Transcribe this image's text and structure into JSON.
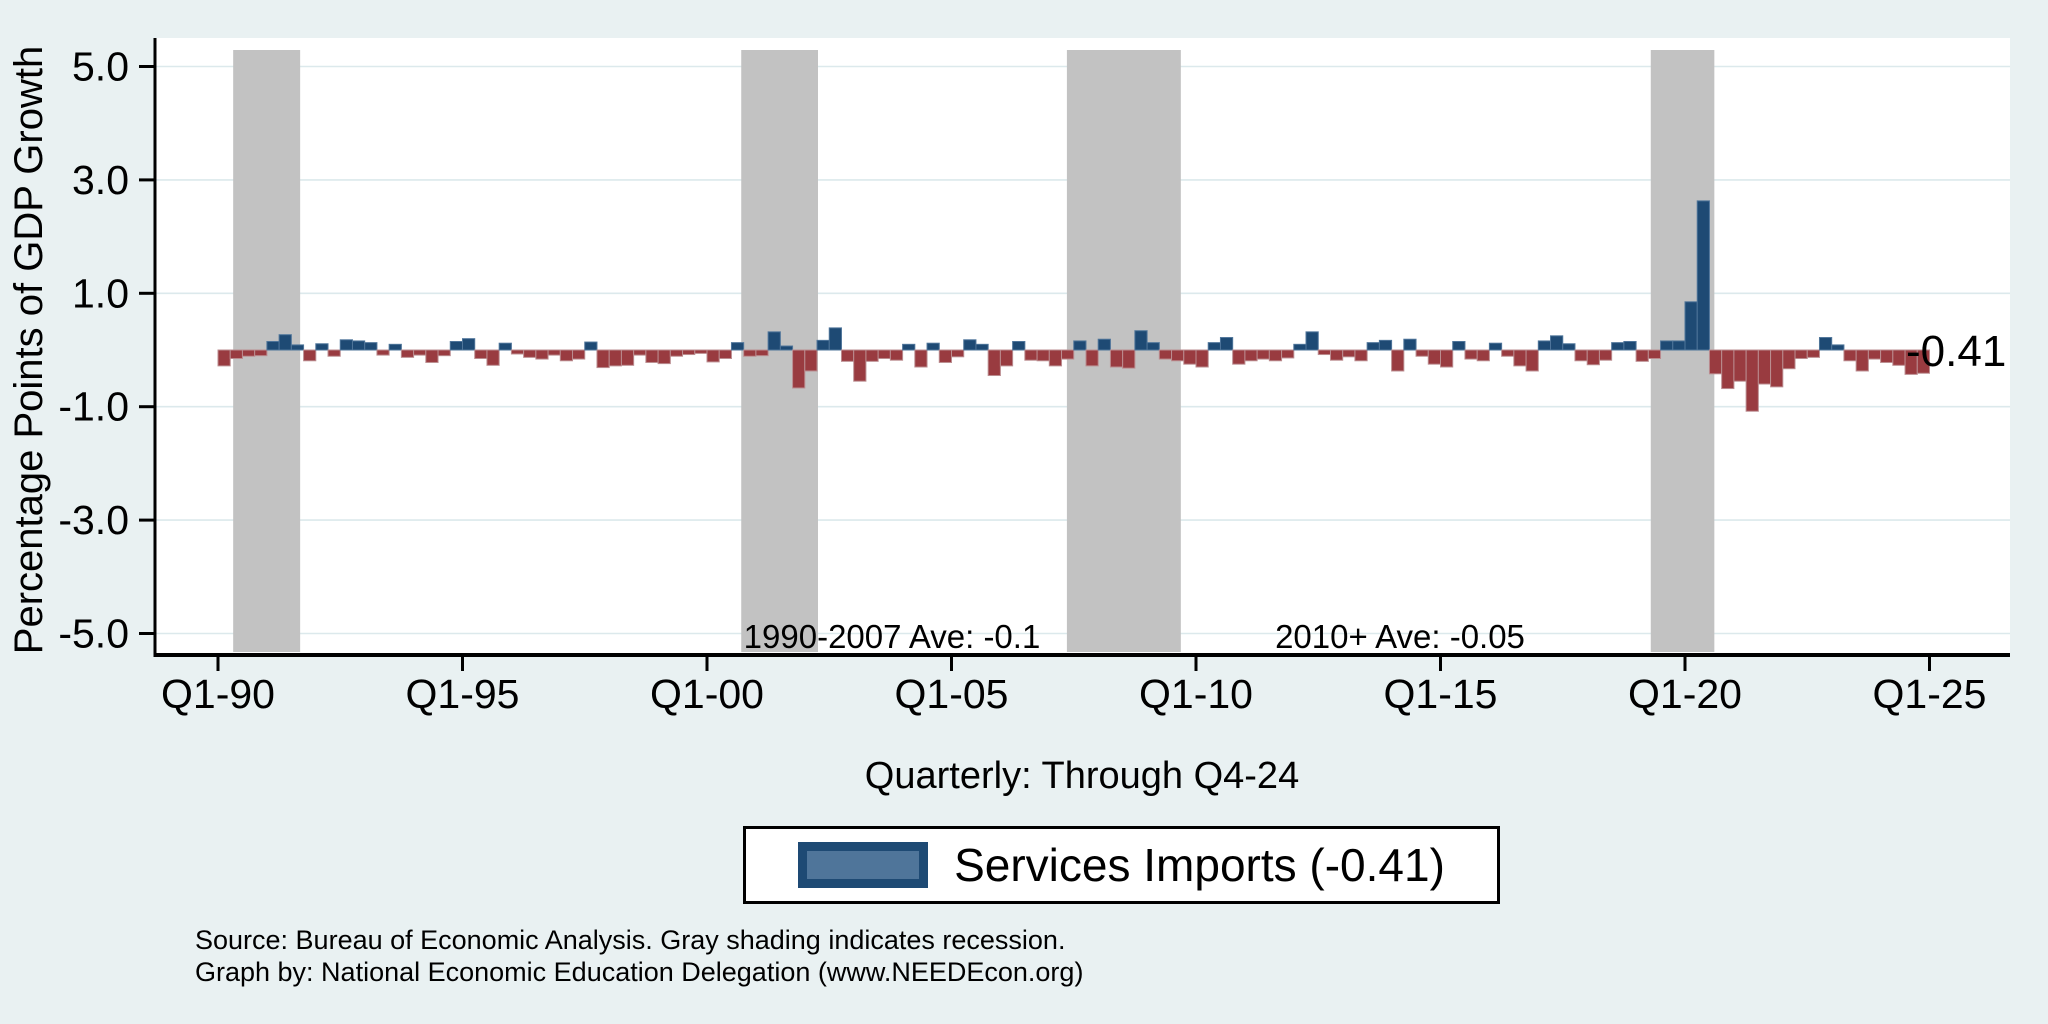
{
  "chart_data": {
    "type": "bar",
    "title": "",
    "ylabel": "Percentage Points of GDP Growth",
    "xlabel": "Quarterly: Through Q4-24",
    "ylim": [
      -5.4,
      5.5
    ],
    "xlim": [
      1988.7,
      2026.6
    ],
    "grid": true,
    "y_ticks": [
      {
        "label": "5.0",
        "value": 5
      },
      {
        "label": "3.0",
        "value": 3
      },
      {
        "label": "1.0",
        "value": 1
      },
      {
        "label": "-1.0",
        "value": -1
      },
      {
        "label": "-3.0",
        "value": -3
      },
      {
        "label": "-5.0",
        "value": -5
      }
    ],
    "x_ticks": [
      {
        "label": "Q1-90",
        "year": 1990
      },
      {
        "label": "Q1-95",
        "year": 1995
      },
      {
        "label": "Q1-00",
        "year": 2000
      },
      {
        "label": "Q1-05",
        "year": 2005
      },
      {
        "label": "Q1-10",
        "year": 2010
      },
      {
        "label": "Q1-15",
        "year": 2015
      },
      {
        "label": "Q1-20",
        "year": 2020
      },
      {
        "label": "Q1-25",
        "year": 2025
      }
    ],
    "series": [
      {
        "name": "Services Imports",
        "start": "1990Q1",
        "end": "2024Q4",
        "frequency": "quarterly",
        "end_label": "-0.41",
        "values": [
          -0.28,
          -0.15,
          -0.11,
          -0.1,
          0.15,
          0.27,
          0.09,
          -0.19,
          0.11,
          -0.11,
          0.18,
          0.16,
          0.13,
          -0.09,
          0.1,
          -0.13,
          -0.09,
          -0.22,
          -0.1,
          0.15,
          0.2,
          -0.15,
          -0.27,
          0.12,
          -0.07,
          -0.13,
          -0.16,
          -0.09,
          -0.19,
          -0.16,
          0.14,
          -0.31,
          -0.28,
          -0.27,
          -0.09,
          -0.22,
          -0.24,
          -0.11,
          -0.08,
          -0.06,
          -0.21,
          -0.15,
          0.13,
          -0.11,
          -0.1,
          0.32,
          0.07,
          -0.67,
          -0.37,
          0.17,
          0.39,
          -0.2,
          -0.55,
          -0.2,
          -0.15,
          -0.18,
          0.1,
          -0.3,
          0.12,
          -0.22,
          -0.12,
          0.18,
          0.1,
          -0.45,
          -0.28,
          0.15,
          -0.18,
          -0.19,
          -0.28,
          -0.16,
          0.16,
          -0.28,
          0.19,
          -0.3,
          -0.32,
          0.34,
          0.13,
          -0.16,
          -0.19,
          -0.25,
          -0.3,
          0.13,
          0.22,
          -0.25,
          -0.19,
          -0.16,
          -0.19,
          -0.14,
          0.1,
          0.32,
          -0.08,
          -0.18,
          -0.12,
          -0.19,
          0.13,
          0.17,
          -0.37,
          0.19,
          -0.11,
          -0.25,
          -0.3,
          0.15,
          -0.16,
          -0.19,
          0.12,
          -0.11,
          -0.28,
          -0.37,
          0.16,
          0.25,
          0.11,
          -0.19,
          -0.26,
          -0.18,
          0.13,
          0.15,
          -0.2,
          -0.15,
          0.16,
          0.16,
          0.85,
          2.63,
          -0.42,
          -0.68,
          -0.55,
          -1.08,
          -0.6,
          -0.65,
          -0.33,
          -0.15,
          -0.13,
          0.22,
          0.09,
          -0.19,
          -0.37,
          -0.16,
          -0.22,
          -0.27,
          -0.43,
          -0.41
        ]
      }
    ],
    "recessions": [
      [
        1990.31,
        1991.68
      ],
      [
        2000.7,
        2002.27
      ],
      [
        2007.36,
        2009.69
      ],
      [
        2019.3,
        2020.6
      ]
    ],
    "annotations": [
      {
        "text": "1990-2007 Ave: -0.1"
      },
      {
        "text": "2010+ Ave: -0.05"
      }
    ],
    "legend": {
      "label": "Services Imports (-0.41)"
    },
    "notes": [
      "Source: Bureau of Economic Analysis. Gray shading indicates recession.",
      "Graph by: National Economic Education Delegation (www.NEEDEcon.org)"
    ],
    "colors": {
      "positive": "#1e4a74",
      "positive_edge": "#4f759a",
      "negative": "#993b40",
      "negative_edge": "#bb8d90",
      "recession": "#c2c2c2",
      "background": "#e9f1f2",
      "plot_background": "#ffffff",
      "grid": "#dce9ec",
      "axis": "#000000"
    }
  }
}
